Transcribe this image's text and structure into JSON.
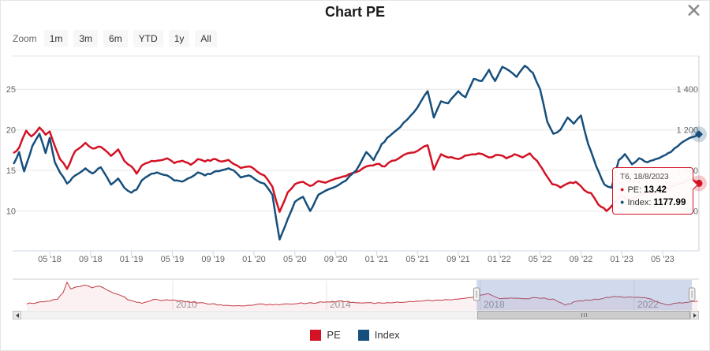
{
  "modal": {
    "title": "Chart PE",
    "close_label": "✕"
  },
  "range_selector": {
    "zoom_label": "Zoom",
    "buttons": [
      "1m",
      "3m",
      "6m",
      "YTD",
      "1y",
      "All"
    ]
  },
  "legend": [
    {
      "label": "PE",
      "color": "#d31224"
    },
    {
      "label": "Index",
      "color": "#174f7c"
    }
  ],
  "tooltip": {
    "header": "T6, 18/8/2023",
    "rows": [
      {
        "label": "PE:",
        "value": "13.42",
        "color": "#d31224"
      },
      {
        "label": "Index:",
        "value": "1177.99",
        "color": "#174f7c"
      }
    ]
  },
  "chart_data": {
    "type": "line",
    "title": "Chart PE",
    "x_axis": {
      "unit": "months_since_2018_02",
      "ticks": [
        {
          "m": 3,
          "label": "05 '18"
        },
        {
          "m": 7,
          "label": "09 '18"
        },
        {
          "m": 11,
          "label": "01 '19"
        },
        {
          "m": 15,
          "label": "05 '19"
        },
        {
          "m": 19,
          "label": "09 '19"
        },
        {
          "m": 23,
          "label": "01 '20"
        },
        {
          "m": 27,
          "label": "05 '20"
        },
        {
          "m": 31,
          "label": "09 '20"
        },
        {
          "m": 35,
          "label": "01 '21"
        },
        {
          "m": 39,
          "label": "05 '21"
        },
        {
          "m": 43,
          "label": "09 '21"
        },
        {
          "m": 47,
          "label": "01 '22"
        },
        {
          "m": 51,
          "label": "05 '22"
        },
        {
          "m": 55,
          "label": "09 '22"
        },
        {
          "m": 59,
          "label": "01 '23"
        },
        {
          "m": 63,
          "label": "05 '23"
        }
      ]
    },
    "left_axis": {
      "name": "PE",
      "min": 5.1,
      "max": 29.1,
      "ticks": [
        {
          "value": 10,
          "label": "10"
        },
        {
          "value": 15,
          "label": "15"
        },
        {
          "value": 20,
          "label": "20"
        },
        {
          "value": 25,
          "label": "25"
        }
      ]
    },
    "right_axis": {
      "name": "Index",
      "min": 604,
      "max": 1563,
      "ticks": [
        {
          "value": 800,
          "label": "800"
        },
        {
          "value": 1000,
          "label": "1 000"
        },
        {
          "value": 1200,
          "label": "1 200"
        },
        {
          "value": 1400,
          "label": "1 400"
        }
      ]
    },
    "series": [
      {
        "name": "PE",
        "color": "#d31224",
        "axis": "left",
        "points": [
          [
            -0.5,
            17.2
          ],
          [
            0,
            17.8
          ],
          [
            0.7,
            19.9
          ],
          [
            1.2,
            19.2
          ],
          [
            2,
            20.3
          ],
          [
            2.6,
            19.4
          ],
          [
            3,
            19.8
          ],
          [
            3.5,
            18.0
          ],
          [
            4,
            16.4
          ],
          [
            4.7,
            15.2
          ],
          [
            5.5,
            17.4
          ],
          [
            6.5,
            18.4
          ],
          [
            7.2,
            17.7
          ],
          [
            8,
            17.9
          ],
          [
            9,
            16.8
          ],
          [
            9.7,
            17.6
          ],
          [
            10.3,
            16.2
          ],
          [
            11,
            15.5
          ],
          [
            11.5,
            14.6
          ],
          [
            12,
            15.6
          ],
          [
            12.7,
            16.0
          ],
          [
            13.5,
            16.2
          ],
          [
            14.5,
            16.5
          ],
          [
            15.2,
            15.9
          ],
          [
            16,
            16.2
          ],
          [
            16.8,
            15.7
          ],
          [
            17.5,
            16.4
          ],
          [
            18.2,
            16.1
          ],
          [
            19,
            16.4
          ],
          [
            19.8,
            16.1
          ],
          [
            20.5,
            16.3
          ],
          [
            21,
            15.8
          ],
          [
            21.7,
            15.3
          ],
          [
            22.5,
            15.5
          ],
          [
            23,
            15.2
          ],
          [
            24,
            14.4
          ],
          [
            24.8,
            13.0
          ],
          [
            25.5,
            9.9
          ],
          [
            26.3,
            12.3
          ],
          [
            27,
            13.3
          ],
          [
            27.8,
            13.6
          ],
          [
            28.5,
            13.1
          ],
          [
            29.3,
            13.7
          ],
          [
            30,
            13.5
          ],
          [
            31,
            14.0
          ],
          [
            32,
            14.3
          ],
          [
            33,
            14.8
          ],
          [
            34,
            15.5
          ],
          [
            35,
            15.8
          ],
          [
            35.8,
            15.5
          ],
          [
            36.5,
            16.2
          ],
          [
            37.3,
            16.6
          ],
          [
            38,
            17.1
          ],
          [
            39,
            17.4
          ],
          [
            40,
            18.1
          ],
          [
            40.6,
            15.1
          ],
          [
            41.3,
            17.0
          ],
          [
            42,
            16.6
          ],
          [
            43,
            16.4
          ],
          [
            44,
            16.9
          ],
          [
            45,
            17.1
          ],
          [
            46,
            16.6
          ],
          [
            47,
            16.9
          ],
          [
            47.7,
            16.5
          ],
          [
            48.5,
            17.0
          ],
          [
            49.3,
            16.6
          ],
          [
            50,
            17.1
          ],
          [
            50.7,
            16.2
          ],
          [
            51.5,
            14.6
          ],
          [
            52.2,
            13.3
          ],
          [
            53,
            12.9
          ],
          [
            53.7,
            13.4
          ],
          [
            54.5,
            13.6
          ],
          [
            55.3,
            12.6
          ],
          [
            56,
            12.2
          ],
          [
            56.7,
            10.8
          ],
          [
            57.5,
            10.0
          ],
          [
            58.2,
            10.9
          ],
          [
            59,
            11.9
          ],
          [
            59.7,
            11.3
          ],
          [
            60.5,
            11.8
          ],
          [
            61.3,
            12.3
          ],
          [
            62,
            12.2
          ],
          [
            63,
            12.7
          ],
          [
            64,
            13.1
          ],
          [
            65,
            13.5
          ],
          [
            65.8,
            13.9
          ],
          [
            66.55,
            13.42
          ]
        ]
      },
      {
        "name": "Index",
        "color": "#174f7c",
        "axis": "right",
        "points": [
          [
            -0.5,
            1035
          ],
          [
            0,
            1090
          ],
          [
            0.5,
            995
          ],
          [
            1.3,
            1120
          ],
          [
            2,
            1180
          ],
          [
            2.6,
            1085
          ],
          [
            3,
            1160
          ],
          [
            3.5,
            1040
          ],
          [
            4,
            990
          ],
          [
            4.7,
            935
          ],
          [
            5.5,
            975
          ],
          [
            6.5,
            1010
          ],
          [
            7.2,
            985
          ],
          [
            8,
            1015
          ],
          [
            9,
            930
          ],
          [
            9.7,
            960
          ],
          [
            10.3,
            915
          ],
          [
            11,
            890
          ],
          [
            11.5,
            905
          ],
          [
            12,
            950
          ],
          [
            12.7,
            975
          ],
          [
            13.5,
            990
          ],
          [
            14.5,
            975
          ],
          [
            15.2,
            950
          ],
          [
            16,
            945
          ],
          [
            16.8,
            965
          ],
          [
            17.5,
            990
          ],
          [
            18.2,
            975
          ],
          [
            19,
            990
          ],
          [
            19.8,
            1000
          ],
          [
            20.5,
            1010
          ],
          [
            21,
            1000
          ],
          [
            21.7,
            965
          ],
          [
            22.5,
            975
          ],
          [
            23,
            960
          ],
          [
            24,
            935
          ],
          [
            24.8,
            880
          ],
          [
            25.5,
            660
          ],
          [
            26.3,
            760
          ],
          [
            27,
            845
          ],
          [
            27.8,
            870
          ],
          [
            28.5,
            800
          ],
          [
            29.3,
            880
          ],
          [
            30,
            900
          ],
          [
            31,
            920
          ],
          [
            32,
            950
          ],
          [
            33,
            1000
          ],
          [
            34,
            1090
          ],
          [
            34.7,
            1050
          ],
          [
            35.5,
            1130
          ],
          [
            36.3,
            1170
          ],
          [
            37,
            1200
          ],
          [
            38,
            1250
          ],
          [
            39,
            1310
          ],
          [
            40,
            1390
          ],
          [
            40.6,
            1260
          ],
          [
            41.3,
            1340
          ],
          [
            42,
            1330
          ],
          [
            43,
            1390
          ],
          [
            43.7,
            1360
          ],
          [
            44.5,
            1450
          ],
          [
            45.3,
            1440
          ],
          [
            46,
            1495
          ],
          [
            46.6,
            1440
          ],
          [
            47.3,
            1510
          ],
          [
            48,
            1490
          ],
          [
            48.7,
            1460
          ],
          [
            49.5,
            1515
          ],
          [
            50.3,
            1480
          ],
          [
            51,
            1400
          ],
          [
            51.7,
            1240
          ],
          [
            52.3,
            1180
          ],
          [
            53,
            1200
          ],
          [
            53.7,
            1260
          ],
          [
            54.3,
            1230
          ],
          [
            55,
            1270
          ],
          [
            55.7,
            1130
          ],
          [
            56.5,
            1020
          ],
          [
            57.3,
            930
          ],
          [
            58,
            915
          ],
          [
            58.7,
            1050
          ],
          [
            59.3,
            1080
          ],
          [
            60,
            1030
          ],
          [
            60.7,
            1060
          ],
          [
            61.5,
            1040
          ],
          [
            62.3,
            1055
          ],
          [
            63,
            1070
          ],
          [
            63.8,
            1090
          ],
          [
            64.5,
            1120
          ],
          [
            65.3,
            1150
          ],
          [
            66,
            1165
          ],
          [
            66.55,
            1177.99
          ]
        ]
      }
    ],
    "hover_point": {
      "date": "T6, 18/8/2023",
      "pe": 13.42,
      "index": 1177.99,
      "m": 66.55
    }
  },
  "navigator": {
    "type": "area",
    "series_name": "PE",
    "color": "#c43a45",
    "x_labels": [
      {
        "year": 2010,
        "label": "2010"
      },
      {
        "year": 2014,
        "label": "2014"
      },
      {
        "year": 2018,
        "label": "2018"
      },
      {
        "year": 2022,
        "label": "2022"
      }
    ],
    "selected_range": {
      "start_year": 2017.9,
      "end_year": 2023.5
    },
    "points": [
      [
        2006.2,
        11
      ],
      [
        2006.5,
        12.5
      ],
      [
        2006.8,
        13.5
      ],
      [
        2007.0,
        15
      ],
      [
        2007.15,
        21
      ],
      [
        2007.25,
        30
      ],
      [
        2007.35,
        24
      ],
      [
        2007.5,
        26
      ],
      [
        2007.7,
        27.5
      ],
      [
        2007.9,
        25
      ],
      [
        2008.1,
        26.5
      ],
      [
        2008.3,
        23
      ],
      [
        2008.6,
        19
      ],
      [
        2008.9,
        14
      ],
      [
        2009.2,
        11.5
      ],
      [
        2009.5,
        15
      ],
      [
        2009.7,
        13.8
      ],
      [
        2010.0,
        14.5
      ],
      [
        2010.3,
        13
      ],
      [
        2010.7,
        12
      ],
      [
        2011.0,
        11
      ],
      [
        2011.4,
        9.8
      ],
      [
        2011.8,
        9.2
      ],
      [
        2012.2,
        10.8
      ],
      [
        2012.6,
        10.2
      ],
      [
        2013.0,
        11
      ],
      [
        2013.5,
        11.6
      ],
      [
        2014.0,
        12.8
      ],
      [
        2014.3,
        13.4
      ],
      [
        2014.7,
        12.4
      ],
      [
        2015.0,
        12
      ],
      [
        2015.5,
        11.6
      ],
      [
        2016.0,
        12.4
      ],
      [
        2016.5,
        13.6
      ],
      [
        2017.0,
        14.2
      ],
      [
        2017.5,
        15.6
      ],
      [
        2017.9,
        17.5
      ],
      [
        2018.2,
        20
      ],
      [
        2018.5,
        15.5
      ],
      [
        2018.8,
        16.2
      ],
      [
        2019.1,
        15.5
      ],
      [
        2019.5,
        16.2
      ],
      [
        2019.9,
        15.3
      ],
      [
        2020.2,
        10
      ],
      [
        2020.5,
        13.3
      ],
      [
        2020.9,
        14.5
      ],
      [
        2021.2,
        15.9
      ],
      [
        2021.5,
        17.5
      ],
      [
        2021.8,
        16.8
      ],
      [
        2022.1,
        16.9
      ],
      [
        2022.35,
        15.9
      ],
      [
        2022.6,
        13
      ],
      [
        2022.85,
        10.1
      ],
      [
        2023.1,
        11.7
      ],
      [
        2023.4,
        12.4
      ],
      [
        2023.65,
        13.4
      ]
    ]
  }
}
